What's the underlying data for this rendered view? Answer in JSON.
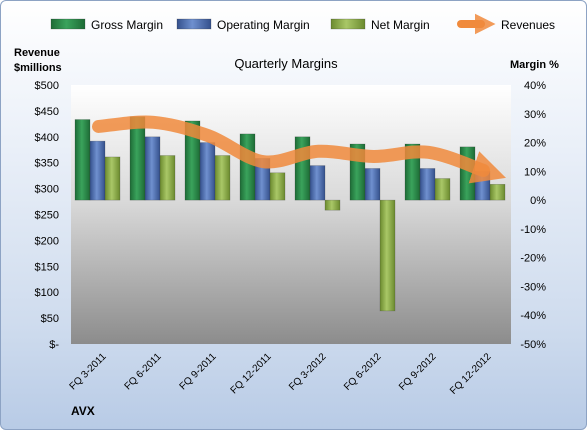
{
  "chart_data": {
    "type": "bar",
    "title": "Quarterly Margins",
    "company": "AVX",
    "ylabel_left": [
      "Revenue",
      "$millions"
    ],
    "ylabel_right": "Margin %",
    "left_ticks": [
      "$500",
      "$450",
      "$400",
      "$350",
      "$300",
      "$250",
      "$200",
      "$150",
      "$100",
      "$50",
      "$-"
    ],
    "right_ticks": [
      "40%",
      "30%",
      "20%",
      "10%",
      "0%",
      "-10%",
      "-20%",
      "-30%",
      "-40%",
      "-50%"
    ],
    "ylim_left": [
      0,
      500
    ],
    "ylim_right": [
      -50,
      40
    ],
    "categories": [
      "FQ 3-2011",
      "FQ 6-2011",
      "FQ 9-2011",
      "FQ 12-2011",
      "FQ 3-2012",
      "FQ 6-2012",
      "FQ 9-2012",
      "FQ 12-2012"
    ],
    "series": [
      {
        "name": "Gross Margin",
        "axis": "right",
        "kind": "bar",
        "color": "#2e8b4a",
        "values": [
          28,
          29,
          27.5,
          23,
          22,
          19.5,
          19.5,
          18.5
        ]
      },
      {
        "name": "Operating Margin",
        "axis": "right",
        "kind": "bar",
        "color": "#4f72b8",
        "values": [
          20.5,
          22,
          20,
          14.5,
          12,
          11,
          11,
          10
        ]
      },
      {
        "name": "Net Margin",
        "axis": "right",
        "kind": "bar",
        "color": "#8fb04a",
        "values": [
          15,
          15.5,
          15.5,
          9.5,
          -3.5,
          -38.5,
          7.5,
          5.5
        ]
      },
      {
        "name": "Revenues",
        "axis": "left",
        "kind": "line",
        "color": "#f08a3c",
        "values": [
          420,
          428,
          402,
          352,
          372,
          362,
          370,
          335
        ]
      }
    ],
    "grid": false,
    "legend": "top"
  }
}
